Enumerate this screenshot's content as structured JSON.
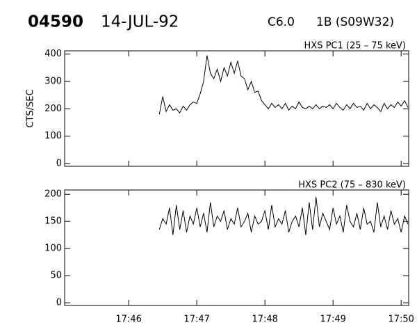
{
  "header": {
    "event": "04590",
    "date": "14-JUL-92",
    "goes_class": "C6.0",
    "h_alpha": "1B (S09W32)"
  },
  "chart_data": [
    {
      "type": "line",
      "title": "HXS PC1 (25 – 75 keV)",
      "y_label": "CTS/SEC",
      "x": [
        1066.45,
        1066.5,
        1066.55,
        1066.6,
        1066.65,
        1066.7,
        1066.75,
        1066.8,
        1066.85,
        1066.9,
        1066.95,
        1067,
        1067.05,
        1067.1,
        1067.15,
        1067.2,
        1067.25,
        1067.3,
        1067.35,
        1067.4,
        1067.45,
        1067.5,
        1067.55,
        1067.6,
        1067.65,
        1067.7,
        1067.75,
        1067.8,
        1067.85,
        1067.9,
        1067.95,
        1068,
        1068.05,
        1068.1,
        1068.15,
        1068.2,
        1068.25,
        1068.3,
        1068.35,
        1068.4,
        1068.45,
        1068.5,
        1068.55,
        1068.6,
        1068.65,
        1068.7,
        1068.75,
        1068.8,
        1068.85,
        1068.9,
        1068.95,
        1069,
        1069.05,
        1069.1,
        1069.15,
        1069.2,
        1069.25,
        1069.3,
        1069.35,
        1069.4,
        1069.45,
        1069.5,
        1069.55,
        1069.6,
        1069.65,
        1069.7,
        1069.75,
        1069.8,
        1069.85,
        1069.9,
        1069.95,
        1070,
        1070.05,
        1070.1
      ],
      "series": [
        {
          "color": "#000000",
          "values": [
            180,
            245,
            190,
            215,
            195,
            200,
            185,
            210,
            195,
            215,
            225,
            220,
            255,
            300,
            395,
            330,
            310,
            345,
            300,
            350,
            320,
            370,
            330,
            375,
            320,
            310,
            270,
            300,
            260,
            265,
            230,
            215,
            200,
            220,
            205,
            215,
            200,
            220,
            195,
            210,
            200,
            225,
            205,
            200,
            210,
            200,
            215,
            200,
            210,
            205,
            215,
            200,
            220,
            205,
            195,
            215,
            200,
            220,
            205,
            210,
            195,
            220,
            200,
            215,
            205,
            190,
            220,
            200,
            215,
            205,
            225,
            210,
            230,
            205
          ]
        }
      ],
      "xlim": [
        1065.06,
        1070.11
      ],
      "ylim": [
        -10,
        412
      ],
      "yticks": [
        0,
        100,
        200,
        300,
        400
      ]
    },
    {
      "type": "line",
      "title": "HXS PC2 (75 – 830 keV)",
      "x": [
        1066.45,
        1066.5,
        1066.55,
        1066.6,
        1066.65,
        1066.7,
        1066.75,
        1066.8,
        1066.85,
        1066.9,
        1066.95,
        1067,
        1067.05,
        1067.1,
        1067.15,
        1067.2,
        1067.25,
        1067.3,
        1067.35,
        1067.4,
        1067.45,
        1067.5,
        1067.55,
        1067.6,
        1067.65,
        1067.7,
        1067.75,
        1067.8,
        1067.85,
        1067.9,
        1067.95,
        1068,
        1068.05,
        1068.1,
        1068.15,
        1068.2,
        1068.25,
        1068.3,
        1068.35,
        1068.4,
        1068.45,
        1068.5,
        1068.55,
        1068.6,
        1068.65,
        1068.7,
        1068.75,
        1068.8,
        1068.85,
        1068.9,
        1068.95,
        1069,
        1069.05,
        1069.1,
        1069.15,
        1069.2,
        1069.25,
        1069.3,
        1069.35,
        1069.4,
        1069.45,
        1069.5,
        1069.55,
        1069.6,
        1069.65,
        1069.7,
        1069.75,
        1069.8,
        1069.85,
        1069.9,
        1069.95,
        1070,
        1070.05,
        1070.1
      ],
      "series": [
        {
          "color": "#000000",
          "values": [
            135,
            155,
            145,
            175,
            125,
            180,
            135,
            170,
            130,
            160,
            145,
            175,
            140,
            165,
            130,
            185,
            140,
            160,
            150,
            170,
            135,
            155,
            145,
            175,
            140,
            150,
            165,
            130,
            160,
            145,
            150,
            170,
            135,
            180,
            140,
            155,
            145,
            170,
            130,
            150,
            160,
            140,
            175,
            125,
            185,
            135,
            195,
            140,
            165,
            150,
            135,
            175,
            145,
            160,
            130,
            180,
            150,
            140,
            165,
            135,
            175,
            145,
            150,
            130,
            185,
            140,
            160,
            135,
            170,
            145,
            155,
            130,
            160,
            145
          ]
        }
      ],
      "xlim": [
        1065.06,
        1070.11
      ],
      "ylim": [
        -5,
        208
      ],
      "yticks": [
        0,
        50,
        100,
        150,
        200
      ],
      "xticks": [
        {
          "value": 1066,
          "label": "17:46"
        },
        {
          "value": 1067,
          "label": "17:47"
        },
        {
          "value": 1068,
          "label": "17:48"
        },
        {
          "value": 1069,
          "label": "17:49"
        },
        {
          "value": 1070,
          "label": "17:50"
        }
      ]
    }
  ]
}
